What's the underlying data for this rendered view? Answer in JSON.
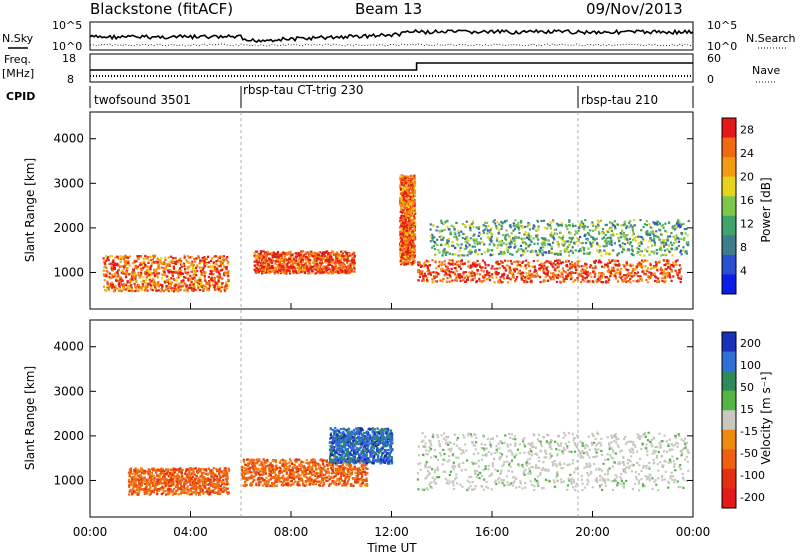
{
  "header": {
    "station": "Blackstone (fitACF)",
    "beam": "Beam 13",
    "date": "09/Nov/2013"
  },
  "summary_panels": {
    "nsky_label": "N.Sky",
    "nsearch_label": "N.Search",
    "noise_ticks": [
      "10^5",
      "10^0"
    ],
    "freq_label": "Freq.",
    "freq_unit": "[MHz]",
    "freq_ticks": [
      "18",
      "8"
    ],
    "nave_label": "Nave",
    "nave_ticks": [
      "60",
      "0"
    ],
    "cpid_label": "CPID",
    "cpid_segments": [
      {
        "label": "twofsound 3501",
        "start_hour": 0.0
      },
      {
        "label": "rbsp-tau CT-trig 230",
        "start_hour": 6.0
      },
      {
        "label": "rbsp-tau 210",
        "start_hour": 19.0
      }
    ]
  },
  "colors": {
    "power_scale": [
      "#0a1ee6",
      "#2a4fd0",
      "#3f7d8a",
      "#3fa36a",
      "#7fc74a",
      "#e8d21a",
      "#f59a12",
      "#f26a10",
      "#e41a1a"
    ],
    "velocity_scale": [
      "#1c2fb8",
      "#2f6fd6",
      "#2e8a5a",
      "#55b544",
      "#c8c8c0",
      "#f08a10",
      "#f06010",
      "#e43010",
      "#e41a1a"
    ],
    "ground_scatter": "#c8c8c0"
  },
  "chart_data": [
    {
      "type": "heatmap",
      "title": "",
      "ylabel": "Slant Range [km]",
      "xlim_hours": [
        0,
        24
      ],
      "ylim": [
        180,
        4600
      ],
      "xticks": [
        "00:00",
        "04:00",
        "08:00",
        "12:00",
        "16:00",
        "20:00",
        "00:00"
      ],
      "yticks": [
        1000,
        2000,
        3000,
        4000
      ],
      "colorbar": {
        "label": "Power [dB]",
        "ticks": [
          4,
          8,
          12,
          16,
          20,
          24,
          28
        ],
        "range": [
          0,
          30
        ]
      },
      "features": [
        {
          "name": "morning E/F echoes",
          "hours": [
            0.5,
            5.5
          ],
          "range_km": [
            600,
            1400
          ],
          "power_db": 26
        },
        {
          "name": "main F-region band",
          "hours": [
            6.5,
            10.5
          ],
          "range_km": [
            1000,
            1500
          ],
          "power_db": 28
        },
        {
          "name": "midday spike",
          "hours": [
            12.3,
            12.9
          ],
          "range_km": [
            1200,
            3200
          ],
          "power_db": 26
        },
        {
          "name": "afternoon band",
          "hours": [
            13.0,
            23.5
          ],
          "range_km": [
            800,
            1300
          ],
          "power_db": 28
        },
        {
          "name": "upper weak echoes",
          "hours": [
            13.5,
            23.8
          ],
          "range_km": [
            1400,
            2200
          ],
          "power_db": 12
        }
      ]
    },
    {
      "type": "heatmap",
      "title": "",
      "ylabel": "Slant Range [km]",
      "xlabel": "Time UT",
      "xlim_hours": [
        0,
        24
      ],
      "ylim": [
        180,
        4600
      ],
      "xticks": [
        "00:00",
        "04:00",
        "08:00",
        "12:00",
        "16:00",
        "20:00",
        "00:00"
      ],
      "yticks": [
        1000,
        2000,
        3000,
        4000
      ],
      "colorbar": {
        "label": "Velocity [m s⁻¹]",
        "ticks": [
          200,
          100,
          50,
          15,
          -15,
          -50,
          -100,
          -200
        ]
      },
      "features": [
        {
          "name": "morning echoes",
          "hours": [
            1.5,
            5.5
          ],
          "range_km": [
            700,
            1300
          ],
          "velocity": -60
        },
        {
          "name": "main band",
          "hours": [
            6.0,
            11.0
          ],
          "range_km": [
            900,
            1500
          ],
          "velocity": -40
        },
        {
          "name": "pre-noon toward",
          "hours": [
            9.5,
            12.0
          ],
          "range_km": [
            1400,
            2200
          ],
          "velocity": 100
        },
        {
          "name": "ground scatter",
          "hours": [
            13.0,
            23.8
          ],
          "range_km": [
            800,
            2100
          ],
          "velocity": 0
        }
      ]
    }
  ]
}
